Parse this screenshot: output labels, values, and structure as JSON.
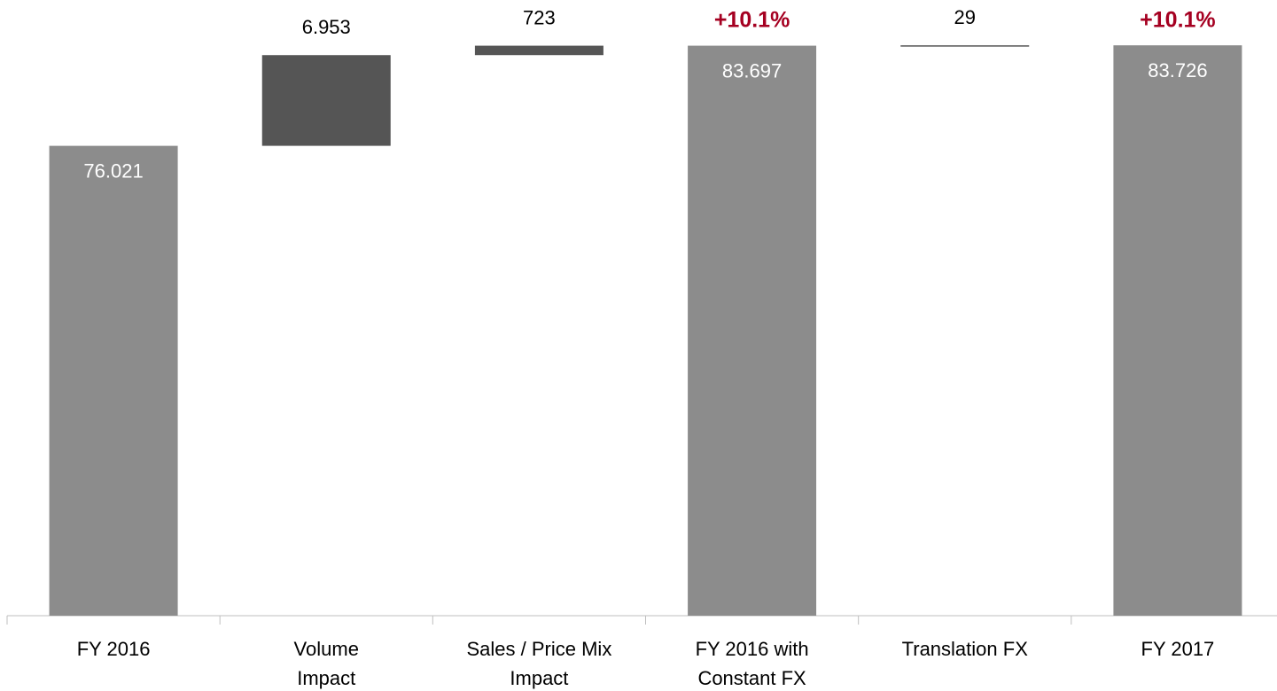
{
  "chart_data": {
    "type": "waterfall",
    "categories": [
      [
        "FY 2016"
      ],
      [
        "Volume",
        "Impact"
      ],
      [
        "Sales / Price Mix",
        "Impact"
      ],
      [
        "FY 2016 with",
        "Constant FX"
      ],
      [
        "Translation FX"
      ],
      [
        "FY 2017"
      ]
    ],
    "measures": [
      "total",
      "delta",
      "delta",
      "total",
      "delta",
      "total"
    ],
    "values": [
      76021,
      6953,
      723,
      83697,
      29,
      83726
    ],
    "value_labels": [
      "76.021",
      "6.953",
      "723",
      "83.697",
      "29",
      "83.726"
    ],
    "growth_labels": [
      null,
      null,
      null,
      "+10.1%",
      null,
      "+10.1%"
    ],
    "colors": {
      "total": "#8c8c8c",
      "delta": "#555555",
      "growth": "#a50021"
    },
    "ylim": [
      40000,
      87200
    ]
  }
}
